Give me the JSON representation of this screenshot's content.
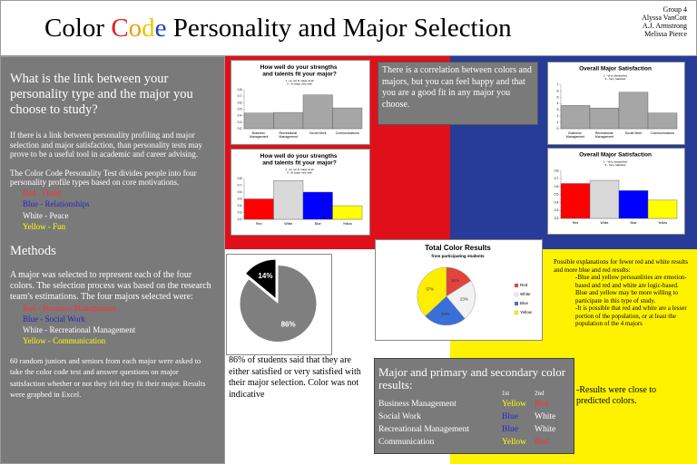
{
  "header": {
    "title_parts": [
      "Color ",
      "C",
      "o",
      "d",
      "e",
      " Personality and Major Selection"
    ],
    "authors": [
      "Group 4",
      "Alyssa VanCott",
      "A.J. Armstrong",
      "Melissa Pierce"
    ]
  },
  "intro": {
    "question": "What is the link between your personality type and the major you choose to study?",
    "paragraphs": [
      "If there is a link between personality profiling and major selection and major satisfaction, than personality tests may prove to be a useful tool in academic and career advising.",
      "The Color Code Personality Test divides people into four personality profile types based on core motivations."
    ],
    "colors": [
      "Red - Order",
      "Blue - Relationships",
      "White - Peace",
      "Yellow - Fun"
    ]
  },
  "methods": {
    "heading": "Methods",
    "paragraph": "A major was selected to represent each of the four colors. The selection process was based on the research team's estimations. The four majors selected were:",
    "majors": [
      "Red - Business Management",
      "Blue - Social Work",
      "White - Recreational Management",
      "Yellow - Communication"
    ],
    "closing": "60 random juniors and seniors from each major were asked to take the color code test and answer questions on major satisfaction whether or not they felt they fit their major. Results were graphed in Excel."
  },
  "conclusion": "There is a correlation between colors and majors, but you can feel happy and that you are a good fit in any major you choose.",
  "pie_caption": "86% of students said that they are either satisfied or very satisfied with their major selection. Color was not indicative",
  "explanations": {
    "intro": "Possible explanations for fewer red and white results and more blue and red results:",
    "items": [
      "-Blue and yellow persoanlities are emotion-based and red and white are logic-based. Blue and yellow may be more willing to participate in this type of study.",
      "-It is possible that red and white are a lesser portion of the population, or at least the population of the 4 majors"
    ]
  },
  "results_note": "-Results were close to predicted colors.",
  "table": {
    "title": "Major and primary and secondary color results:",
    "header": [
      "1st",
      "2nd"
    ],
    "rows": [
      [
        "Business Management",
        "Yellow",
        "Red"
      ],
      [
        "Social Work",
        "Blue",
        "White"
      ],
      [
        "Recreational Management",
        "Blue",
        "White"
      ],
      [
        "Communication",
        "Yellow",
        "Red"
      ]
    ]
  },
  "chart_data": [
    {
      "type": "bar",
      "title": "How well do your strengths and talents fit your major?",
      "subtitle": [
        "1 - do not fit major at all",
        "5 - fit major very well"
      ],
      "categories": [
        "Business Management",
        "Recreational Management",
        "Social Work",
        "Communications"
      ],
      "values": [
        0.44,
        0.45,
        0.72,
        0.52
      ],
      "color": "#a6a6a6",
      "ylim": [
        0.2,
        0.8
      ],
      "yticks": [
        0.2,
        0.3,
        0.4,
        0.5,
        0.6,
        0.7,
        0.8
      ]
    },
    {
      "type": "bar",
      "title": "How well do your strengths and talents fit your major?",
      "subtitle": [
        "1 - do not fit major at all",
        "5 - fit major very well"
      ],
      "categories": [
        "Red",
        "White",
        "Blue",
        "Yellow"
      ],
      "values": [
        0.5,
        0.77,
        0.6,
        0.4
      ],
      "colors": [
        "#ff0000",
        "#d9d9d9",
        "#0000ff",
        "#ffff00"
      ],
      "ylim": [
        0.2,
        0.8
      ],
      "yticks": [
        0.2,
        0.3,
        0.4,
        0.5,
        0.6,
        0.7,
        0.8
      ]
    },
    {
      "type": "bar",
      "title": "Overall Major Satisfaction",
      "subtitle": [
        "1 - Very dissatisfied",
        "5 - Very Satisfied"
      ],
      "categories": [
        "Business Management",
        "Recreational Management",
        "Social Work",
        "Communications"
      ],
      "values": [
        3.7,
        3.3,
        5.8,
        2.5
      ],
      "color": "#a6a6a6",
      "ylim": [
        0,
        7
      ],
      "yticks": [
        0,
        1,
        2,
        3,
        4,
        5,
        6,
        7
      ]
    },
    {
      "type": "bar",
      "title": "Overall Major Satisfaction",
      "subtitle": [
        "1 - Very dissatisfied",
        "5 - Very Satisfied"
      ],
      "categories": [
        "Red",
        "White",
        "Blue",
        "Yellow"
      ],
      "values": [
        0.64,
        0.68,
        0.55,
        0.43
      ],
      "colors": [
        "#ff0000",
        "#d9d9d9",
        "#0000ff",
        "#ffff00"
      ],
      "ylim": [
        0.2,
        0.8
      ],
      "yticks": [
        0.2,
        0.3,
        0.4,
        0.5,
        0.6,
        0.7,
        0.8
      ]
    },
    {
      "type": "pie",
      "values": [
        86,
        14
      ],
      "value_labels": [
        "86%",
        "14%"
      ],
      "colors": [
        "#7f7f7f",
        "#000000"
      ],
      "explode": [
        false,
        true
      ]
    },
    {
      "type": "pie",
      "title": "Total Color Results",
      "subtitle": [
        "from participating students"
      ],
      "categories": [
        "Red",
        "White",
        "Blue",
        "Yellow"
      ],
      "values": [
        16,
        23,
        24,
        37
      ],
      "value_labels": [
        "16%",
        "23%",
        "24%",
        "37%"
      ],
      "colors": [
        "#e0443c",
        "#f2f2f2",
        "#3a6fd8",
        "#ffee00"
      ],
      "legend": "right"
    }
  ]
}
